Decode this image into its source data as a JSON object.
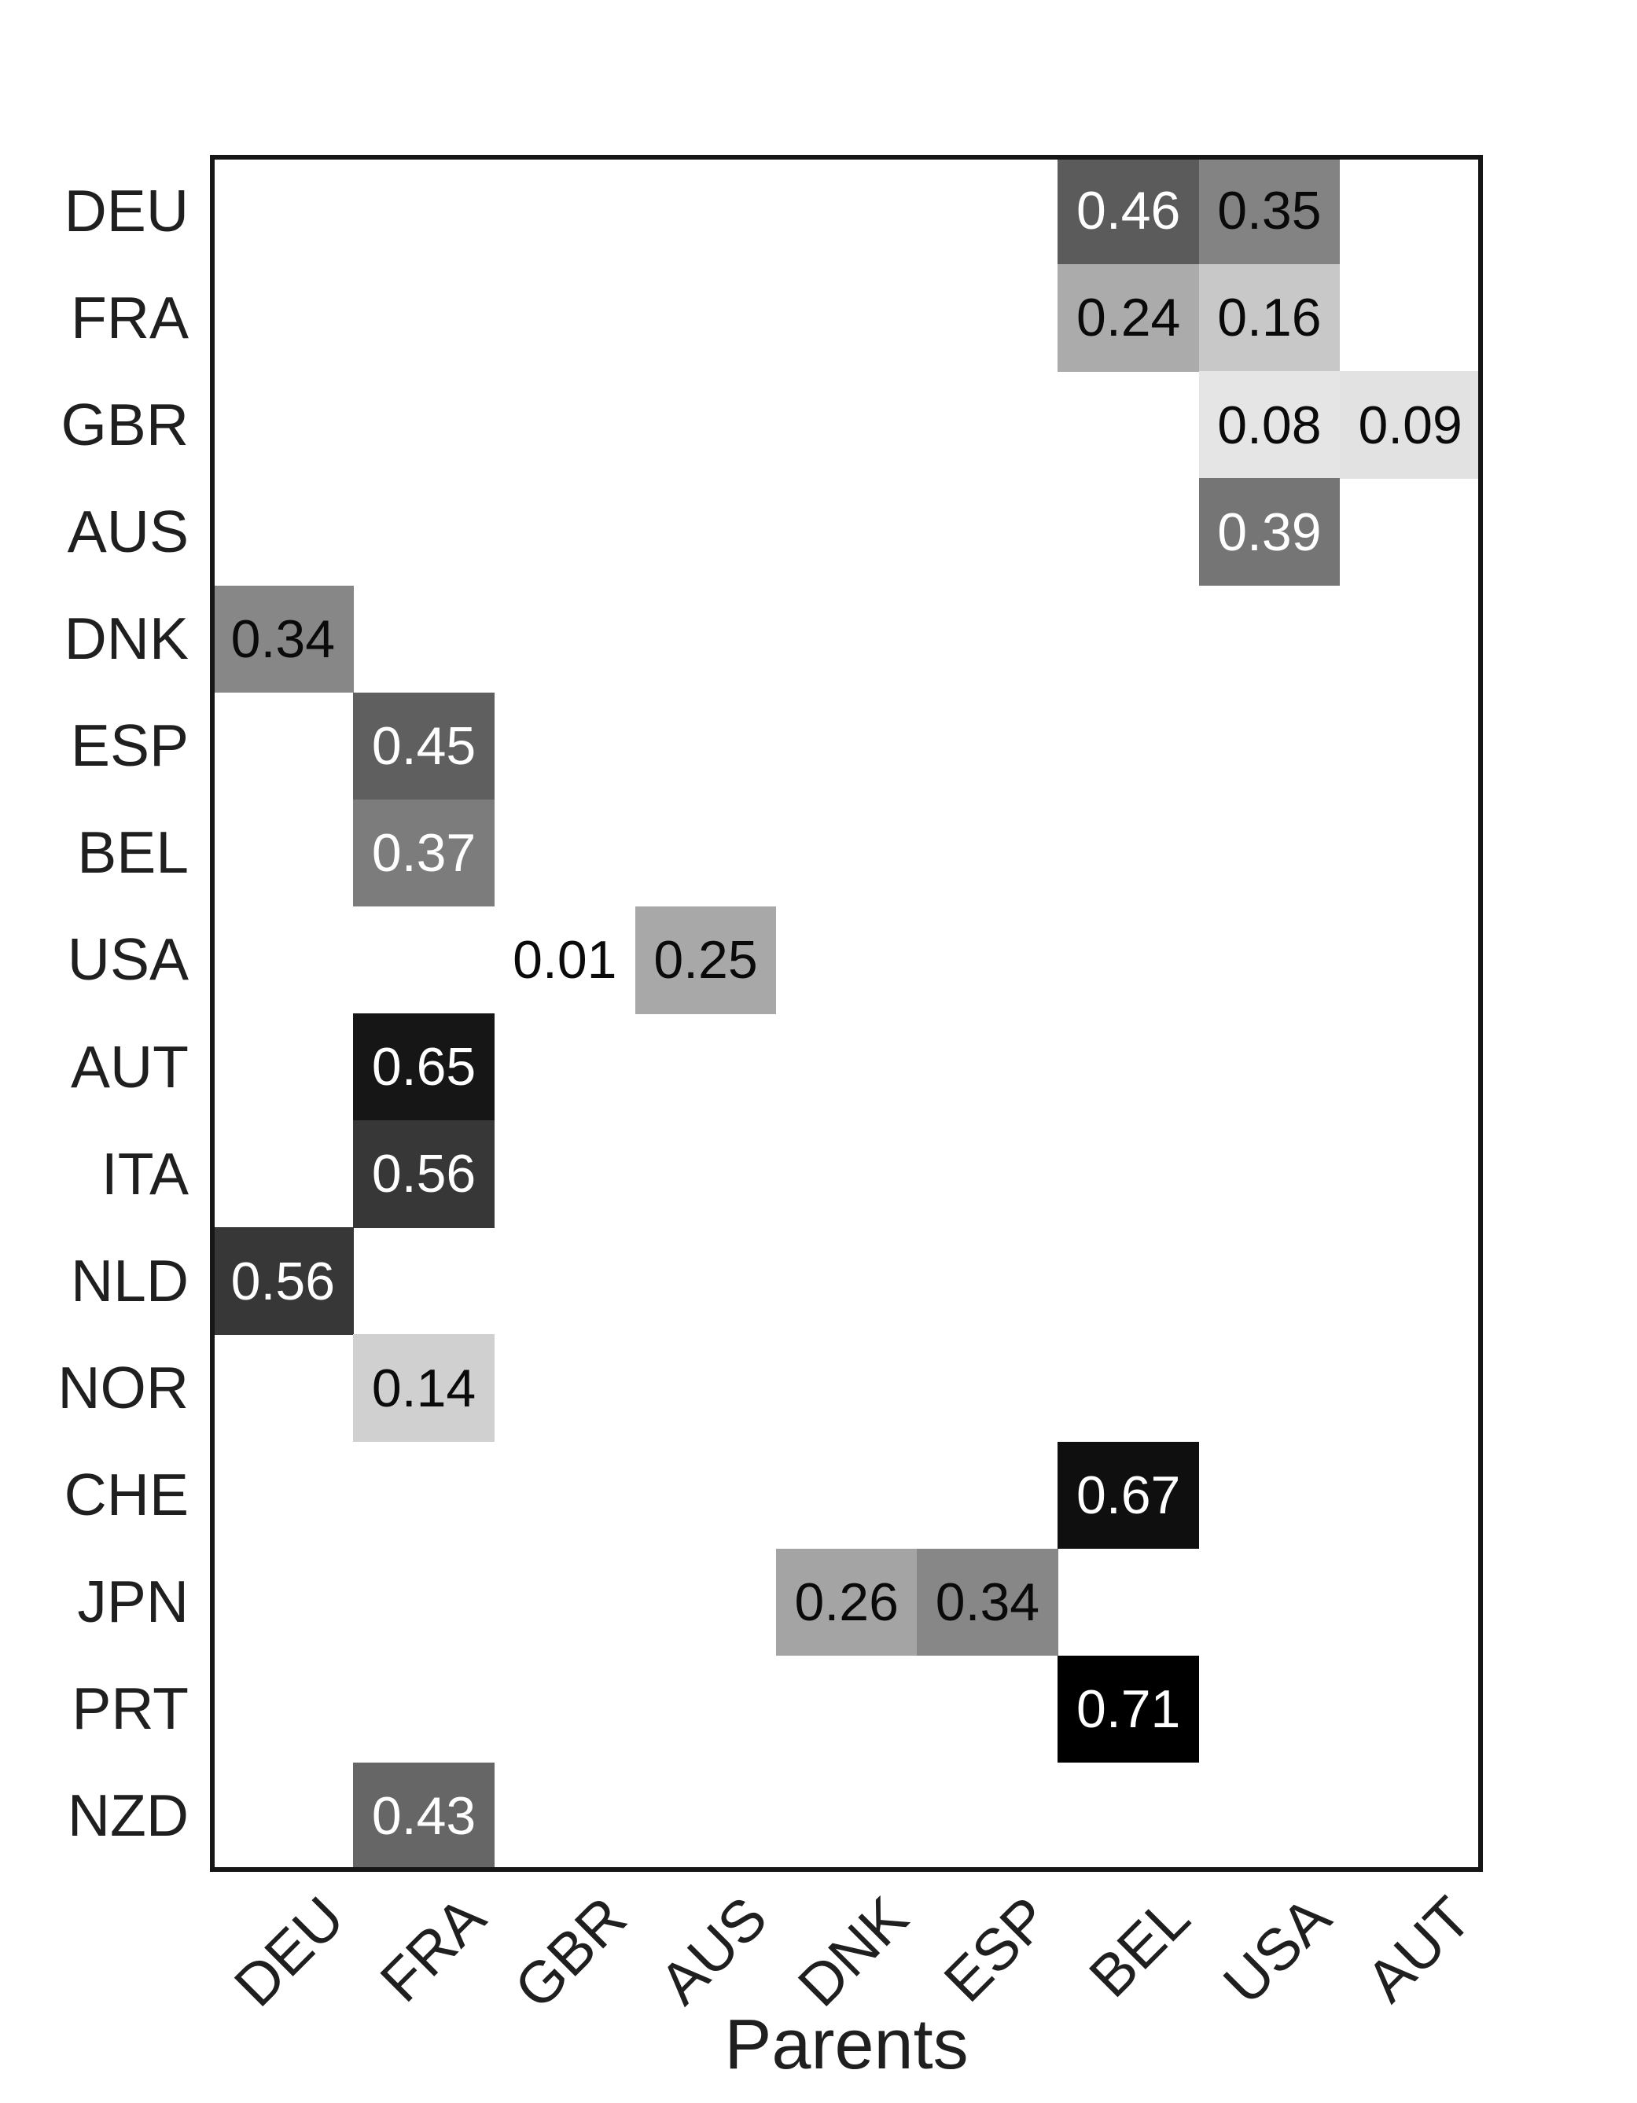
{
  "figure": {
    "background_color": "#ffffff",
    "axis_border_color": "#161616",
    "tick_label_color": "#1f1f1f"
  },
  "chart_data": {
    "type": "heatmap",
    "title": "",
    "xlabel": "Parents",
    "ylabel": "",
    "x_categories": [
      "DEU",
      "FRA",
      "GBR",
      "AUS",
      "DNK",
      "ESP",
      "BEL",
      "USA",
      "AUT"
    ],
    "y_categories": [
      "DEU",
      "FRA",
      "GBR",
      "AUS",
      "DNK",
      "ESP",
      "BEL",
      "USA",
      "AUT",
      "ITA",
      "NLD",
      "NOR",
      "CHE",
      "JPN",
      "PRT",
      "NZD"
    ],
    "colormap": "greys: white = low value, black = high value",
    "vmin": 0.01,
    "vmax": 0.71,
    "grid": false,
    "legend_position": "none",
    "cells": [
      {
        "y": "DEU",
        "x": "BEL",
        "value": 0.46,
        "label": "0.46",
        "bg": "#5b5b5b",
        "fg": "#ffffff"
      },
      {
        "y": "DEU",
        "x": "USA",
        "value": 0.35,
        "label": "0.35",
        "bg": "#838383",
        "fg": "#0a0a0a"
      },
      {
        "y": "FRA",
        "x": "BEL",
        "value": 0.24,
        "label": "0.24",
        "bg": "#ababab",
        "fg": "#0a0a0a"
      },
      {
        "y": "FRA",
        "x": "USA",
        "value": 0.16,
        "label": "0.16",
        "bg": "#c8c8c8",
        "fg": "#0a0a0a"
      },
      {
        "y": "GBR",
        "x": "USA",
        "value": 0.08,
        "label": "0.08",
        "bg": "#e5e5e5",
        "fg": "#0a0a0a"
      },
      {
        "y": "GBR",
        "x": "AUT",
        "value": 0.09,
        "label": "0.09",
        "bg": "#e2e2e2",
        "fg": "#0a0a0a"
      },
      {
        "y": "AUS",
        "x": "USA",
        "value": 0.39,
        "label": "0.39",
        "bg": "#757575",
        "fg": "#ffffff"
      },
      {
        "y": "DNK",
        "x": "DEU",
        "value": 0.34,
        "label": "0.34",
        "bg": "#878787",
        "fg": "#0a0a0a"
      },
      {
        "y": "ESP",
        "x": "FRA",
        "value": 0.45,
        "label": "0.45",
        "bg": "#5f5f5f",
        "fg": "#ffffff"
      },
      {
        "y": "BEL",
        "x": "FRA",
        "value": 0.37,
        "label": "0.37",
        "bg": "#7c7c7c",
        "fg": "#ffffff"
      },
      {
        "y": "USA",
        "x": "GBR",
        "value": 0.01,
        "label": "0.01",
        "bg": "#ffffff",
        "fg": "#0a0a0a"
      },
      {
        "y": "USA",
        "x": "AUS",
        "value": 0.25,
        "label": "0.25",
        "bg": "#a8a8a8",
        "fg": "#0a0a0a"
      },
      {
        "y": "AUT",
        "x": "FRA",
        "value": 0.65,
        "label": "0.65",
        "bg": "#161616",
        "fg": "#ffffff"
      },
      {
        "y": "ITA",
        "x": "FRA",
        "value": 0.56,
        "label": "0.56",
        "bg": "#373737",
        "fg": "#ffffff"
      },
      {
        "y": "NLD",
        "x": "DEU",
        "value": 0.56,
        "label": "0.56",
        "bg": "#373737",
        "fg": "#ffffff"
      },
      {
        "y": "NOR",
        "x": "FRA",
        "value": 0.14,
        "label": "0.14",
        "bg": "#d0d0d0",
        "fg": "#0a0a0a"
      },
      {
        "y": "CHE",
        "x": "BEL",
        "value": 0.67,
        "label": "0.67",
        "bg": "#0f0f0f",
        "fg": "#ffffff"
      },
      {
        "y": "JPN",
        "x": "DNK",
        "value": 0.26,
        "label": "0.26",
        "bg": "#a4a4a4",
        "fg": "#0a0a0a"
      },
      {
        "y": "JPN",
        "x": "ESP",
        "value": 0.34,
        "label": "0.34",
        "bg": "#878787",
        "fg": "#0a0a0a"
      },
      {
        "y": "PRT",
        "x": "BEL",
        "value": 0.71,
        "label": "0.71",
        "bg": "#000000",
        "fg": "#ffffff"
      },
      {
        "y": "NZD",
        "x": "FRA",
        "value": 0.43,
        "label": "0.43",
        "bg": "#666666",
        "fg": "#ffffff"
      }
    ]
  }
}
